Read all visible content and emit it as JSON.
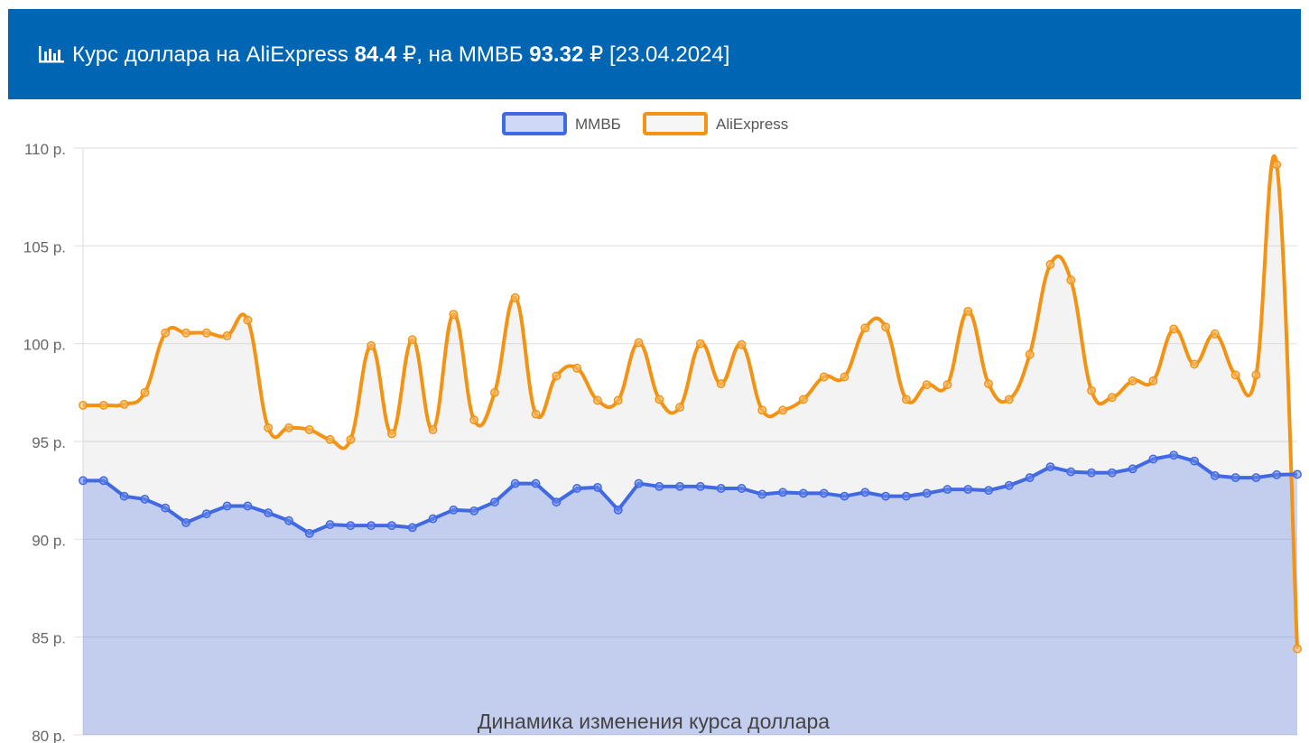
{
  "header": {
    "text_before": "Курс доллара на AliExpress",
    "ali_value": "84.4",
    "currency": "₽",
    "text_middle": ", на ММВБ",
    "mmvb_value": "93.32",
    "date": "[23.04.2024]",
    "icon": "bar-chart-icon"
  },
  "chart_data": {
    "type": "line",
    "title": "Динамика изменения курса доллара",
    "xlabel": "",
    "ylabel": "",
    "ylim": [
      80,
      110
    ],
    "yticks": [
      {
        "value": 110,
        "label": "110 р."
      },
      {
        "value": 105,
        "label": "105 р."
      },
      {
        "value": 100,
        "label": "100 р."
      },
      {
        "value": 95,
        "label": "95 р."
      },
      {
        "value": 90,
        "label": "90 р."
      },
      {
        "value": 85,
        "label": "85 р."
      },
      {
        "value": 80,
        "label": "80 р."
      }
    ],
    "grid": true,
    "legend": "top-center",
    "series": [
      {
        "name": "ММВБ",
        "color": "#4169e1",
        "fill": "rgba(65,105,225,0.27)",
        "smooth": false,
        "values": [
          93.0,
          93.0,
          92.2,
          92.05,
          91.6,
          90.85,
          91.3,
          91.7,
          91.7,
          91.35,
          90.95,
          90.3,
          90.75,
          90.7,
          90.7,
          90.7,
          90.6,
          91.05,
          91.5,
          91.45,
          91.9,
          92.85,
          92.85,
          91.9,
          92.6,
          92.65,
          91.5,
          92.85,
          92.7,
          92.7,
          92.7,
          92.6,
          92.6,
          92.3,
          92.4,
          92.35,
          92.35,
          92.2,
          92.4,
          92.2,
          92.2,
          92.35,
          92.55,
          92.55,
          92.5,
          92.75,
          93.15,
          93.7,
          93.45,
          93.4,
          93.4,
          93.6,
          94.1,
          94.3,
          94.0,
          93.25,
          93.15,
          93.15,
          93.3,
          93.32
        ]
      },
      {
        "name": "AliExpress",
        "color": "#f39314",
        "fill": "rgba(200,200,200,0.22)",
        "smooth": true,
        "values": [
          96.85,
          96.85,
          96.9,
          97.5,
          100.55,
          100.55,
          100.55,
          100.4,
          101.2,
          95.7,
          95.7,
          95.6,
          95.1,
          95.1,
          99.9,
          95.4,
          100.2,
          95.6,
          101.5,
          96.1,
          97.5,
          102.35,
          96.4,
          98.35,
          98.75,
          97.1,
          97.1,
          100.05,
          97.15,
          96.75,
          100.0,
          97.95,
          99.95,
          96.6,
          96.6,
          97.15,
          98.3,
          98.3,
          100.8,
          100.85,
          97.15,
          97.9,
          97.9,
          101.65,
          97.95,
          97.15,
          99.45,
          104.05,
          103.25,
          97.6,
          97.25,
          98.1,
          98.1,
          100.75,
          98.95,
          100.5,
          98.4,
          98.4,
          109.15,
          84.4
        ]
      }
    ]
  }
}
